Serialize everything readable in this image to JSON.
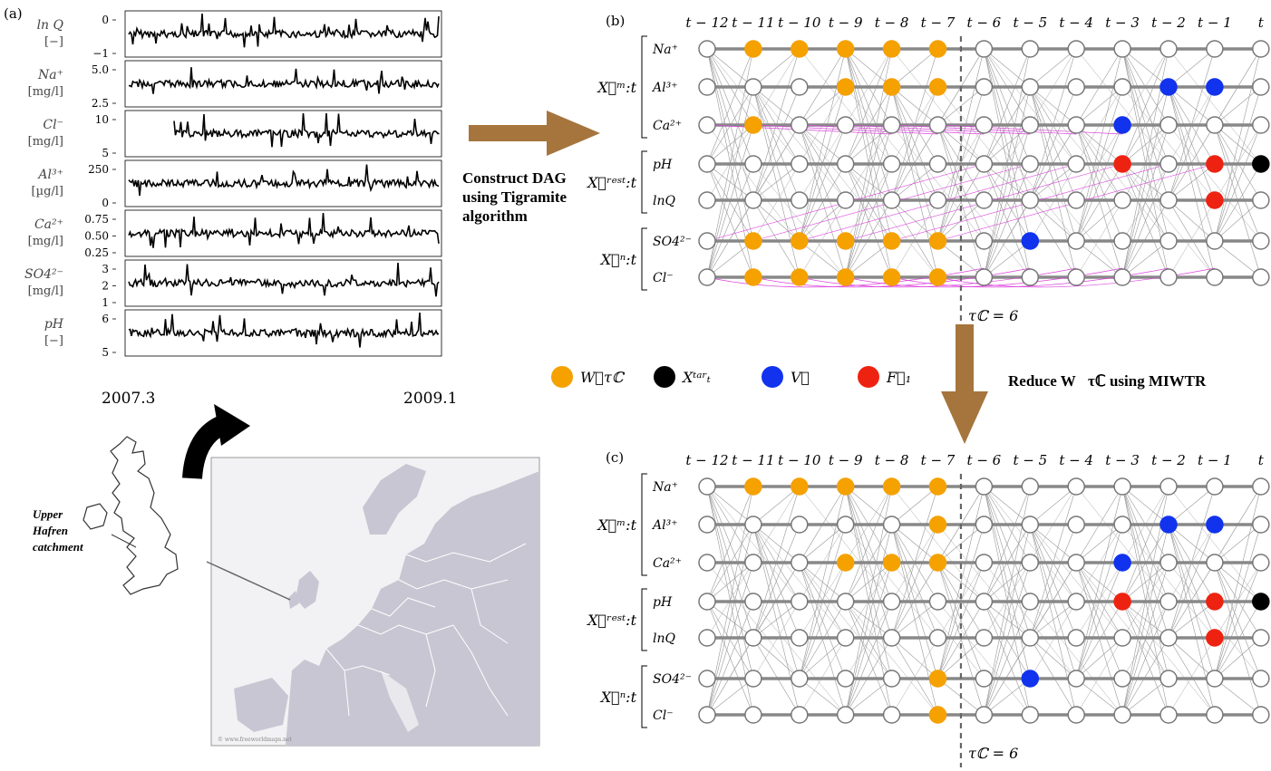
{
  "panels": {
    "a": "(a)",
    "b": "(b)",
    "c": "(c)"
  },
  "series": [
    {
      "label": "ln Q",
      "unit": "[−]",
      "ticks": [
        "0",
        "−1"
      ],
      "color": "#000000"
    },
    {
      "label": "Na⁺",
      "unit": "[mg/l]",
      "ticks": [
        "5.0",
        "2.5"
      ],
      "color": "#000000"
    },
    {
      "label": "Cl⁻",
      "unit": "[mg/l]",
      "ticks": [
        "10",
        "5"
      ],
      "color": "#000000"
    },
    {
      "label": "Al³⁺",
      "unit": "[µg/l]",
      "ticks": [
        "250",
        "0"
      ],
      "color": "#000000"
    },
    {
      "label": "Ca²⁺",
      "unit": "[mg/l]",
      "ticks": [
        "0.75",
        "0.50",
        "0.25"
      ],
      "color": "#000000"
    },
    {
      "label": "SO4²⁻",
      "unit": "[mg/l]",
      "ticks": [
        "3",
        "2",
        "1"
      ],
      "color": "#000000"
    },
    {
      "label": "pH",
      "unit": "[−]",
      "ticks": [
        "6",
        "5"
      ],
      "color": "#000000"
    }
  ],
  "time_axis": {
    "start": "2007.3",
    "end": "2009.1"
  },
  "map": {
    "catchment_label_1": "Upper",
    "catchment_label_2": "Hafren",
    "catchment_label_3": "catchment",
    "credit": "© www.freeworldmaps.net"
  },
  "arrow_text": [
    "Construct DAG",
    "using Tigramite",
    "algorithm"
  ],
  "reduce_text": "Reduce W⃗τℂ using MIWTR",
  "time_labels": [
    "t − 12",
    "t − 11",
    "t − 10",
    "t − 9",
    "t − 8",
    "t − 7",
    "t − 6",
    "t − 5",
    "t − 4",
    "t − 3",
    "t − 2",
    "t − 1",
    "t"
  ],
  "var_labels": [
    "Na⁺",
    "Al³⁺",
    "Ca²⁺",
    "pH",
    "lnQ",
    "SO4²⁻",
    "Cl⁻"
  ],
  "group_labels": {
    "m": "X⃗ᵐ:t",
    "rest": "X⃗ʳᵉˢᵗ:t",
    "n": "X⃗ⁿ:t"
  },
  "tau_label": "τℂ = 6",
  "legend": [
    {
      "label": "W⃗τℂ",
      "color": "#F5A100"
    },
    {
      "label": "Xᵗᵃʳₜ",
      "color": "#000000"
    },
    {
      "label": "V⃗",
      "color": "#1133EE"
    },
    {
      "label": "F⃗₁",
      "color": "#EE2211"
    }
  ],
  "dag_b": {
    "orange": [
      [
        0,
        1
      ],
      [
        0,
        2
      ],
      [
        0,
        3
      ],
      [
        0,
        4
      ],
      [
        0,
        5
      ],
      [
        1,
        3
      ],
      [
        1,
        4
      ],
      [
        1,
        5
      ],
      [
        2,
        1
      ],
      [
        5,
        1
      ],
      [
        5,
        2
      ],
      [
        5,
        3
      ],
      [
        5,
        4
      ],
      [
        5,
        5
      ],
      [
        6,
        1
      ],
      [
        6,
        2
      ],
      [
        6,
        3
      ],
      [
        6,
        4
      ],
      [
        6,
        5
      ]
    ],
    "blue": [
      [
        1,
        10
      ],
      [
        1,
        11
      ],
      [
        2,
        9
      ],
      [
        5,
        7
      ]
    ],
    "red": [
      [
        3,
        9
      ],
      [
        3,
        11
      ],
      [
        4,
        11
      ]
    ],
    "black": [
      [
        3,
        12
      ]
    ]
  },
  "dag_c": {
    "orange": [
      [
        0,
        1
      ],
      [
        0,
        2
      ],
      [
        0,
        3
      ],
      [
        0,
        4
      ],
      [
        0,
        5
      ],
      [
        1,
        5
      ],
      [
        2,
        3
      ],
      [
        2,
        4
      ],
      [
        2,
        5
      ],
      [
        5,
        5
      ],
      [
        6,
        5
      ]
    ],
    "blue": [
      [
        1,
        10
      ],
      [
        1,
        11
      ],
      [
        2,
        9
      ],
      [
        5,
        7
      ]
    ],
    "red": [
      [
        3,
        9
      ],
      [
        3,
        11
      ],
      [
        4,
        11
      ]
    ],
    "black": [
      [
        3,
        12
      ]
    ]
  },
  "colors": {
    "arrow": "#A5753D",
    "node_edge": "#888888",
    "magenta": "#DD44DD",
    "map_sea": "#F2F2F4",
    "map_land": "#C9C6D3"
  }
}
